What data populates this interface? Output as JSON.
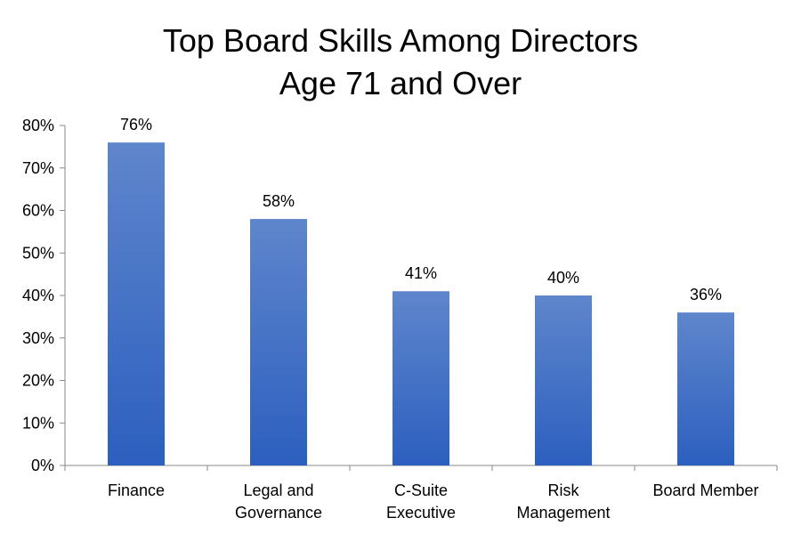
{
  "chart_data": {
    "type": "bar",
    "title_lines": [
      "Top Board Skills Among Directors",
      "Age 71 and Over"
    ],
    "categories": [
      [
        "Finance"
      ],
      [
        "Legal and",
        "Governance"
      ],
      [
        "C-Suite",
        "Executive"
      ],
      [
        "Risk",
        "Management"
      ],
      [
        "Board Member"
      ]
    ],
    "values": [
      76,
      58,
      41,
      40,
      36
    ],
    "data_labels": [
      "76%",
      "58%",
      "41%",
      "40%",
      "36%"
    ],
    "y_ticks": [
      "0%",
      "10%",
      "20%",
      "30%",
      "40%",
      "50%",
      "60%",
      "70%",
      "80%"
    ],
    "ylim": [
      0,
      80
    ],
    "grid": false,
    "legend": "none",
    "xlabel": "",
    "ylabel": "",
    "colors": {
      "bar_top": "#5f86cc",
      "bar_bottom": "#2c5fbf",
      "axis": "#888888",
      "text": "#000000"
    }
  }
}
